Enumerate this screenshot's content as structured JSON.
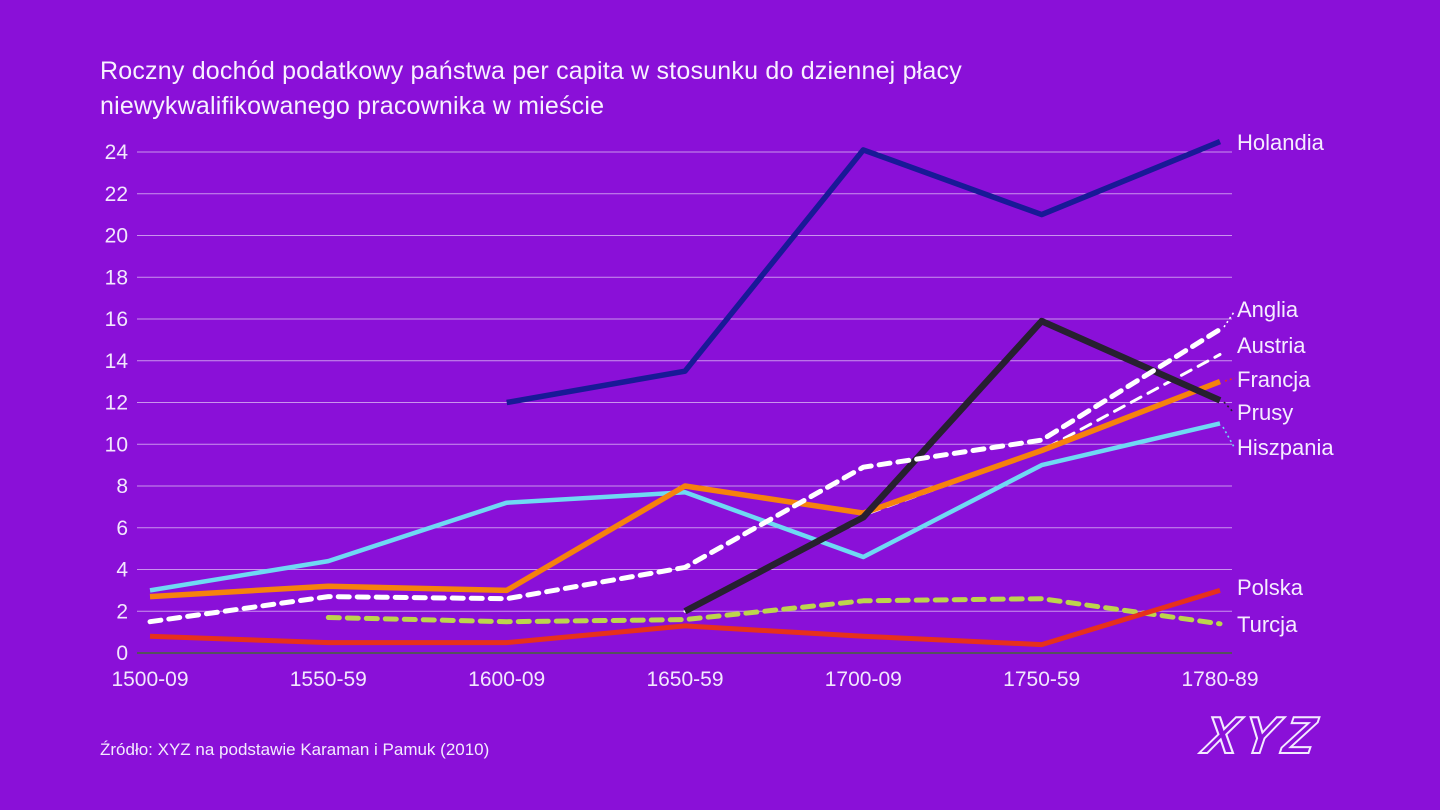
{
  "header": {
    "title_line1": "Roczny dochód podatkowy państwa per capita w stosunku do dziennej płacy",
    "title_line2": "niewykwalifikowanego pracownika w mieście"
  },
  "footer": {
    "source": "Źródło: XYZ na podstawie Karaman i Pamuk (2010)",
    "logo": "XYZ"
  },
  "colors": {
    "background": "#8a10d8",
    "text": "#f6edff",
    "gridline": "rgba(255,255,255,0.55)",
    "zero_axis": "#56505f"
  },
  "chart_data": {
    "type": "line",
    "title": "Roczny dochód podatkowy państwa per capita w stosunku do dziennej płacy niewykwalifikowanego pracownika w mieście",
    "categories": [
      "1500-09",
      "1550-59",
      "1600-09",
      "1650-59",
      "1700-09",
      "1750-59",
      "1780-89"
    ],
    "xlabel": "",
    "ylabel": "",
    "ylim": [
      0,
      24
    ],
    "ytick_step": 2,
    "grid": true,
    "legend_position": "right-edge-labels",
    "series": [
      {
        "name": "Holandia",
        "color": "#191997",
        "style": "solid",
        "values": [
          null,
          null,
          12.0,
          13.5,
          24.1,
          21.0,
          24.5
        ]
      },
      {
        "name": "Anglia",
        "color": "#ffffff",
        "style": "dashed",
        "values": [
          1.5,
          2.7,
          2.6,
          4.1,
          8.9,
          10.2,
          15.5
        ]
      },
      {
        "name": "Austria",
        "color": "#ffffff",
        "style": "dashed",
        "values": [
          null,
          null,
          null,
          2.0,
          6.6,
          9.7,
          14.3
        ]
      },
      {
        "name": "Francja",
        "color": "#f6820d",
        "style": "solid",
        "values": [
          2.7,
          3.2,
          3.0,
          8.0,
          6.7,
          9.7,
          13.0
        ]
      },
      {
        "name": "Prusy",
        "color": "#272030",
        "style": "solid",
        "values": [
          null,
          null,
          null,
          2.0,
          6.5,
          15.9,
          12.1
        ]
      },
      {
        "name": "Hiszpania",
        "color": "#6fd9f3",
        "style": "solid",
        "values": [
          3.0,
          4.4,
          7.2,
          7.7,
          4.6,
          9.0,
          11.0
        ]
      },
      {
        "name": "Polska",
        "color": "#e7301c",
        "style": "solid",
        "values": [
          0.8,
          0.5,
          0.5,
          1.3,
          0.8,
          0.4,
          3.0
        ]
      },
      {
        "name": "Turcja",
        "color": "#bdd44d",
        "style": "dashed",
        "values": [
          null,
          1.7,
          1.5,
          1.6,
          2.5,
          2.6,
          1.4
        ]
      }
    ]
  }
}
